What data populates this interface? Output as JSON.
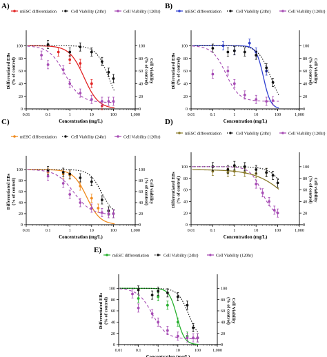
{
  "figure": {
    "panel_letters": [
      "A)",
      "B)",
      "C)",
      "D)",
      "E)"
    ]
  },
  "chart_data": [
    {
      "panel": "A)",
      "type": "line",
      "xlabel": "Concentration (mg/L)",
      "ylabel_left": "Differentiated EBs (% of control)",
      "ylabel_right": "Cell Viability (% of control)",
      "x_scale": "log",
      "xlim": [
        0.01,
        1000
      ],
      "ylim": [
        0,
        120
      ],
      "x_ticks": [
        "0.01",
        "0.1",
        "1",
        "10",
        "100",
        "1,000"
      ],
      "y_ticks": [
        "0",
        "20",
        "40",
        "60",
        "80",
        "100"
      ],
      "legend_position": "top",
      "series": [
        {
          "name": "mESC differentiation",
          "color": "#e32424",
          "line": "solid",
          "x": [
            0.3,
            1,
            3,
            10,
            30
          ],
          "y": [
            90,
            78,
            72,
            40,
            5
          ],
          "fit": {
            "top": 100,
            "ec50": 4.5,
            "hill": 1.3
          }
        },
        {
          "name": "Cell Viability (24hr)",
          "color": "#111111",
          "line": "dotted",
          "x": [
            0.1,
            1,
            3,
            10,
            30,
            60,
            100
          ],
          "y": [
            102,
            90,
            98,
            90,
            75,
            58,
            48
          ],
          "fit": {
            "top": 100,
            "ec50": 60,
            "hill": 1.5
          }
        },
        {
          "name": "Cell Viability (120hr)",
          "color": "#a64bb4",
          "line": "dashed",
          "x": [
            0.05,
            0.1,
            0.5,
            1,
            3,
            10,
            30,
            60,
            100
          ],
          "y": [
            85,
            70,
            62,
            40,
            25,
            15,
            12,
            12,
            12
          ],
          "fit": {
            "top": 100,
            "ec50": 0.6,
            "hill": 1.2,
            "bottom": 10
          }
        }
      ]
    },
    {
      "panel": "B)",
      "type": "line",
      "xlabel": "Concentration (mg/L)",
      "ylabel_left": "Differentiated EBs (% of control)",
      "ylabel_right": "Cell Viability (% of control)",
      "x_scale": "log",
      "xlim": [
        0.01,
        1000
      ],
      "ylim": [
        0,
        120
      ],
      "x_ticks": [
        "0.01",
        "0.1",
        "1",
        "10",
        "100",
        "1,000"
      ],
      "y_ticks": [
        "0",
        "20",
        "40",
        "60",
        "80",
        "100"
      ],
      "legend_position": "top",
      "series": [
        {
          "name": "mESC differentiation",
          "color": "#2f3fd0",
          "line": "solid",
          "x": [
            0.3,
            1,
            5,
            10,
            30
          ],
          "y": [
            100,
            92,
            104,
            90,
            60
          ],
          "fit": {
            "top": 100,
            "ec50": 22,
            "hill": 2.6
          }
        },
        {
          "name": "Cell Viability (24hr)",
          "color": "#111111",
          "line": "dotted",
          "x": [
            0.1,
            0.5,
            1,
            3,
            10,
            30,
            60
          ],
          "y": [
            96,
            90,
            92,
            90,
            85,
            65,
            42
          ],
          "fit": {
            "top": 100,
            "ec50": 48,
            "hill": 1.5
          }
        },
        {
          "name": "Cell Viability (120hr)",
          "color": "#a64bb4",
          "line": "dashed",
          "x": [
            0.1,
            0.5,
            1,
            3,
            10,
            30,
            60
          ],
          "y": [
            55,
            60,
            40,
            22,
            15,
            12,
            13
          ],
          "fit": {
            "top": 100,
            "ec50": 0.4,
            "hill": 1.4,
            "bottom": 12
          }
        }
      ]
    },
    {
      "panel": "C)",
      "type": "line",
      "xlabel": "Concentration (mg/L)",
      "ylabel_left": "Differentiated EBs (% of control)",
      "ylabel_right": "Cell viability (% of control)",
      "x_scale": "log",
      "xlim": [
        0.01,
        1000
      ],
      "ylim": [
        0,
        120
      ],
      "x_ticks": [
        "0.01",
        "0.1",
        "1",
        "10",
        "100",
        "1,000"
      ],
      "y_ticks": [
        "0",
        "20",
        "40",
        "60",
        "80",
        "100"
      ],
      "legend_position": "top",
      "series": [
        {
          "name": "mESC differentiation",
          "color": "#f08a1c",
          "line": "solid",
          "x": [
            0.1,
            0.5,
            1,
            3,
            10,
            20
          ],
          "y": [
            95,
            92,
            90,
            70,
            48,
            30
          ],
          "fit": {
            "top": 100,
            "ec50": 6,
            "hill": 1.4
          }
        },
        {
          "name": "Cell Viability (24hr)",
          "color": "#111111",
          "line": "dotted",
          "x": [
            0.1,
            0.5,
            1,
            3,
            10,
            30,
            60,
            100
          ],
          "y": [
            98,
            95,
            92,
            85,
            78,
            45,
            25,
            20
          ],
          "fit": {
            "top": 100,
            "ec50": 28,
            "hill": 1.6,
            "bottom": 18
          }
        },
        {
          "name": "Cell Viability (120hr)",
          "color": "#a64bb4",
          "line": "dashed",
          "x": [
            0.1,
            0.5,
            1,
            3,
            10,
            30,
            60,
            100
          ],
          "y": [
            88,
            75,
            55,
            40,
            30,
            22,
            20,
            20
          ],
          "fit": {
            "top": 100,
            "ec50": 1.5,
            "hill": 1.1,
            "bottom": 18
          }
        }
      ]
    },
    {
      "panel": "D)",
      "type": "line",
      "xlabel": "Concentration (mg/L)",
      "ylabel_left": "Differentiated EBs (% of control)",
      "ylabel_right": "Cell viability (% of control)",
      "x_scale": "log",
      "xlim": [
        0.01,
        1000
      ],
      "ylim": [
        0,
        120
      ],
      "x_ticks": [
        "0.01",
        "0.1",
        "1",
        "10",
        "100",
        "1,000"
      ],
      "y_ticks": [
        "0",
        "20",
        "40",
        "60",
        "80",
        "100"
      ],
      "legend_position": "top",
      "series": [
        {
          "name": "mESC differentiation",
          "color": "#8a7a2a",
          "line": "solid",
          "x": [
            0.1,
            0.5,
            1,
            3,
            10,
            30
          ],
          "y": [
            92,
            90,
            92,
            90,
            88,
            90
          ],
          "fit": {
            "top": 95,
            "ec50": 300,
            "hill": 0.6
          }
        },
        {
          "name": "Cell Viability (24hr)",
          "color": "#111111",
          "line": "dotted",
          "x": [
            0.1,
            0.5,
            1,
            3,
            10,
            30,
            60,
            100
          ],
          "y": [
            100,
            95,
            102,
            100,
            95,
            90,
            85,
            72
          ],
          "fit": {
            "top": 100,
            "ec50": 300,
            "hill": 1.2
          }
        },
        {
          "name": "Cell Viability (120hr)",
          "color": "#a64bb4",
          "line": "dashed",
          "x": [
            10,
            20,
            40,
            70,
            100
          ],
          "y": [
            70,
            55,
            40,
            25,
            20
          ],
          "fit": {
            "top": 100,
            "ec50": 18,
            "hill": 1.6,
            "bottom": 15
          }
        }
      ]
    },
    {
      "panel": "E)",
      "type": "line",
      "xlabel": "Concentration (mg/L)",
      "ylabel_left": "Differentiated EBs (% of control)",
      "ylabel_right": "Cell Viability (% of control)",
      "x_scale": "log",
      "xlim": [
        0.01,
        1000
      ],
      "ylim": [
        0,
        120
      ],
      "x_ticks": [
        "0.01",
        "0.1",
        "1",
        "10",
        "100",
        "1,000"
      ],
      "y_ticks": [
        "0",
        "20",
        "40",
        "60",
        "80",
        "100"
      ],
      "legend_position": "top",
      "series": [
        {
          "name": "mESC differentiation",
          "color": "#27b02e",
          "line": "solid",
          "x": [
            0.1,
            1,
            3,
            10,
            30
          ],
          "y": [
            82,
            85,
            70,
            40,
            15
          ],
          "fit": {
            "top": 100,
            "ec50": 9,
            "hill": 2.2
          }
        },
        {
          "name": "Cell Viability (24hr)",
          "color": "#111111",
          "line": "dotted",
          "x": [
            0.1,
            0.5,
            1,
            3,
            10,
            30,
            60,
            100
          ],
          "y": [
            97,
            88,
            95,
            92,
            85,
            70,
            30,
            12
          ],
          "fit": {
            "top": 100,
            "ec50": 35,
            "hill": 1.6,
            "bottom": 8
          }
        },
        {
          "name": "Cell Viability (120hr)",
          "color": "#a64bb4",
          "line": "dashed",
          "x": [
            0.05,
            0.1,
            0.5,
            1,
            3,
            10,
            30,
            60,
            100
          ],
          "y": [
            90,
            65,
            55,
            40,
            25,
            15,
            12,
            12,
            12
          ],
          "fit": {
            "top": 100,
            "ec50": 0.5,
            "hill": 1.2,
            "bottom": 10
          }
        }
      ]
    }
  ]
}
